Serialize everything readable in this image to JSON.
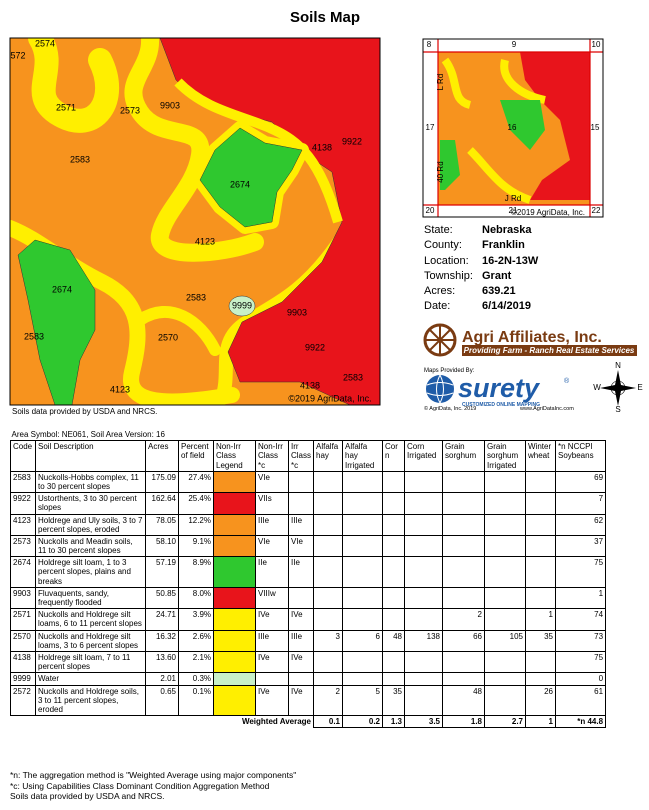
{
  "title": "Soils Map",
  "map": {
    "labels": [
      "2574",
      "572",
      "2571",
      "2573",
      "9903",
      "2583",
      "4138",
      "9922",
      "2674",
      "4123",
      "2674",
      "2583",
      "9999",
      "9903",
      "2583",
      "2570",
      "9922",
      "4123",
      "4138",
      "2583"
    ],
    "copyright": "©2019 AgriData, Inc."
  },
  "small_map": {
    "labels": [
      "8",
      "9",
      "10",
      "L Rd",
      "17",
      "16",
      "15",
      "40 Rd",
      "J Rd",
      "20",
      "21",
      "22"
    ],
    "copyright": "©2019 AgriData, Inc."
  },
  "info": [
    {
      "label": "State:",
      "value": "Nebraska"
    },
    {
      "label": "County:",
      "value": "Franklin"
    },
    {
      "label": "Location:",
      "value": "16-2N-13W"
    },
    {
      "label": "Township:",
      "value": "Grant"
    },
    {
      "label": "Acres:",
      "value": "639.21"
    },
    {
      "label": "Date:",
      "value": "6/14/2019"
    }
  ],
  "logo": {
    "name": "Agri Affiliates, Inc.",
    "tagline": "Providing Farm - Ranch Real Estate Services"
  },
  "surety": {
    "provided_by": "Maps Provided By:",
    "name": "surety",
    "registered": "®",
    "tagline": "CUSTOMIZED ONLINE MAPPING",
    "copyright": "© AgriData, Inc. 2019",
    "website": "www.AgriDataInc.com"
  },
  "compass": [
    "N",
    "W",
    "E",
    "S"
  ],
  "map_source": "Soils data provided by USDA and NRCS.",
  "table": {
    "area": "Area Symbol: NE061, Soil Area Version: 16",
    "headers": [
      "Code",
      "Soil Description",
      "Acres",
      "Percent of field",
      "Non-Irr Class Legend",
      "Non-Irr Class *c",
      "Irr Class *c",
      "Alfalfa hay",
      "Alfalfa hay Irrigated",
      "Corn",
      "Corn Irrigated",
      "Grain sorghum",
      "Grain sorghum Irrigated",
      "Winter wheat",
      "*n NCCPI Soybeans"
    ],
    "rows": [
      {
        "legend_color": "#f7931e",
        "cells": [
          2583,
          "Nuckolls-Hobbs complex, 11 to 30 percent slopes",
          "175.09",
          "27.4%",
          "VIe",
          null,
          null,
          null,
          null,
          null,
          null,
          null,
          null,
          69
        ]
      },
      {
        "legend_color": "#e8141b",
        "cells": [
          9922,
          "Ustorthents, 3 to 30 percent slopes",
          "162.64",
          "25.4%",
          "VIIs",
          null,
          null,
          null,
          null,
          null,
          null,
          null,
          null,
          7
        ]
      },
      {
        "legend_color": "#f7931e",
        "cells": [
          4123,
          "Holdrege and Uly soils, 3 to 7 percent slopes, eroded",
          "78.05",
          "12.2%",
          "IIIe",
          "IIIe",
          null,
          null,
          null,
          null,
          null,
          null,
          null,
          62
        ]
      },
      {
        "legend_color": "#f7931e",
        "cells": [
          2573,
          "Nuckolls and Meadin soils, 11 to 30 percent slopes",
          "58.10",
          "9.1%",
          "VIe",
          "VIe",
          null,
          null,
          null,
          null,
          null,
          null,
          null,
          37
        ]
      },
      {
        "legend_color": "#2fc82f",
        "cells": [
          2674,
          "Holdrege silt loam, 1 to 3 percent slopes, plains and breaks",
          "57.19",
          "8.9%",
          "IIe",
          "IIe",
          null,
          null,
          null,
          null,
          null,
          null,
          null,
          75
        ]
      },
      {
        "legend_color": "#e8141b",
        "cells": [
          9903,
          "Fluvaquents, sandy, frequently flooded",
          "50.85",
          "8.0%",
          "VIIIw",
          null,
          null,
          null,
          null,
          null,
          null,
          null,
          null,
          1
        ]
      },
      {
        "legend_color": "#ffef00",
        "cells": [
          2571,
          "Nuckolls and Holdrege silt loams, 6 to 11 percent slopes",
          "24.71",
          "3.9%",
          "IVe",
          "IVe",
          null,
          null,
          null,
          null,
          2,
          null,
          1,
          74
        ]
      },
      {
        "legend_color": "#ffef00",
        "cells": [
          2570,
          "Nuckolls and Holdrege silt loams, 3 to 6 percent slopes",
          "16.32",
          "2.6%",
          "IIIe",
          "IIIe",
          3,
          6,
          48,
          138,
          66,
          105,
          35,
          73
        ]
      },
      {
        "legend_color": "#ffef00",
        "cells": [
          4138,
          "Holdrege silt loam, 7 to 11 percent slopes",
          "13.60",
          "2.1%",
          "IVe",
          "IVe",
          null,
          null,
          null,
          null,
          null,
          null,
          null,
          75
        ]
      },
      {
        "legend_color": "#c8f0c8",
        "cells": [
          9999,
          "Water",
          "2.01",
          "0.3%",
          null,
          null,
          null,
          null,
          null,
          null,
          null,
          null,
          null,
          0
        ]
      },
      {
        "legend_color": "#ffef00",
        "cells": [
          2572,
          "Nuckolls and Holdrege soils, 3 to 11 percent slopes, eroded",
          "0.65",
          "0.1%",
          "IVe",
          "IVe",
          2,
          5,
          35,
          null,
          48,
          null,
          26,
          61
        ]
      }
    ],
    "weighted_label": "Weighted Average",
    "weighted": [
      0.1,
      0.2,
      1.3,
      3.5,
      1.8,
      2.7,
      1,
      "*n 44.8"
    ]
  },
  "footnotes": [
    "*n: The aggregation method is \"Weighted Average using major components\"",
    "*c: Using Capabilities Class Dominant Condition Aggregation Method",
    "Soils data provided by USDA and NRCS."
  ]
}
